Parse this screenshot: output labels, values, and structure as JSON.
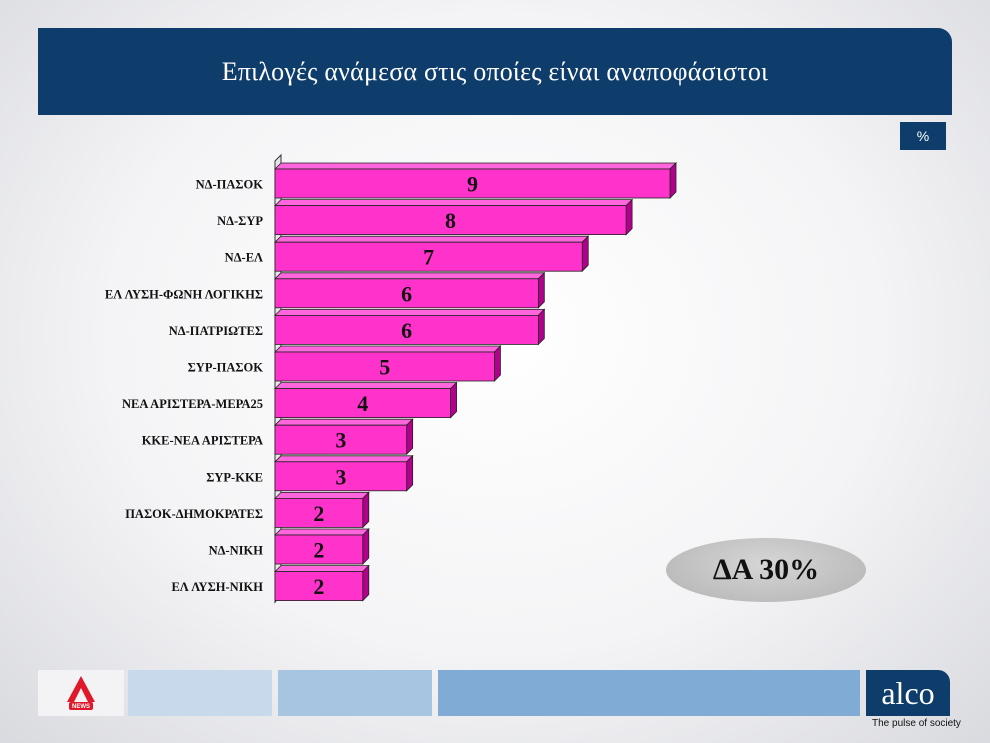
{
  "header": {
    "title": "Επιλογές ανάμεσα στις οποίες είναι αναποφάσιστοι"
  },
  "unit_badge": "%",
  "note": "ΔΑ 30%",
  "logos": {
    "brand": "alco",
    "tagline": "The pulse of society",
    "alpha_news": "NEWS"
  },
  "colors": {
    "bar_front": "#ff33cc",
    "bar_top": "#ff66dd",
    "bar_side": "#b3008c",
    "header": "#0e3d6c"
  },
  "chart_data": {
    "type": "bar",
    "orientation": "horizontal",
    "categories": [
      "ΝΔ-ΠΑΣΟΚ",
      "ΝΔ-ΣΥΡ",
      "ΝΔ-ΕΛ",
      "ΕΛ ΛΥΣΗ-ΦΩΝΗ ΛΟΓΙΚΗΣ",
      "ΝΔ-ΠΑΤΡΙΩΤΕΣ",
      "ΣΥΡ-ΠΑΣΟΚ",
      "ΝΕΑ ΑΡΙΣΤΕΡΑ-ΜΕΡΑ25",
      "ΚΚΕ-ΝΕΑ ΑΡΙΣΤΕΡΑ",
      "ΣΥΡ-ΚΚΕ",
      "ΠΑΣΟΚ-ΔΗΜΟΚΡΑΤΕΣ",
      "ΝΔ-ΝΙΚΗ",
      "ΕΛ ΛΥΣΗ-ΝΙΚΗ"
    ],
    "values": [
      9,
      8,
      7,
      6,
      6,
      5,
      4,
      3,
      3,
      2,
      2,
      2
    ],
    "title": "Επιλογές ανάμεσα στις οποίες είναι αναποφάσιστοι",
    "unit": "%",
    "xlim": [
      0,
      9
    ],
    "grid": false,
    "legend": "none"
  }
}
